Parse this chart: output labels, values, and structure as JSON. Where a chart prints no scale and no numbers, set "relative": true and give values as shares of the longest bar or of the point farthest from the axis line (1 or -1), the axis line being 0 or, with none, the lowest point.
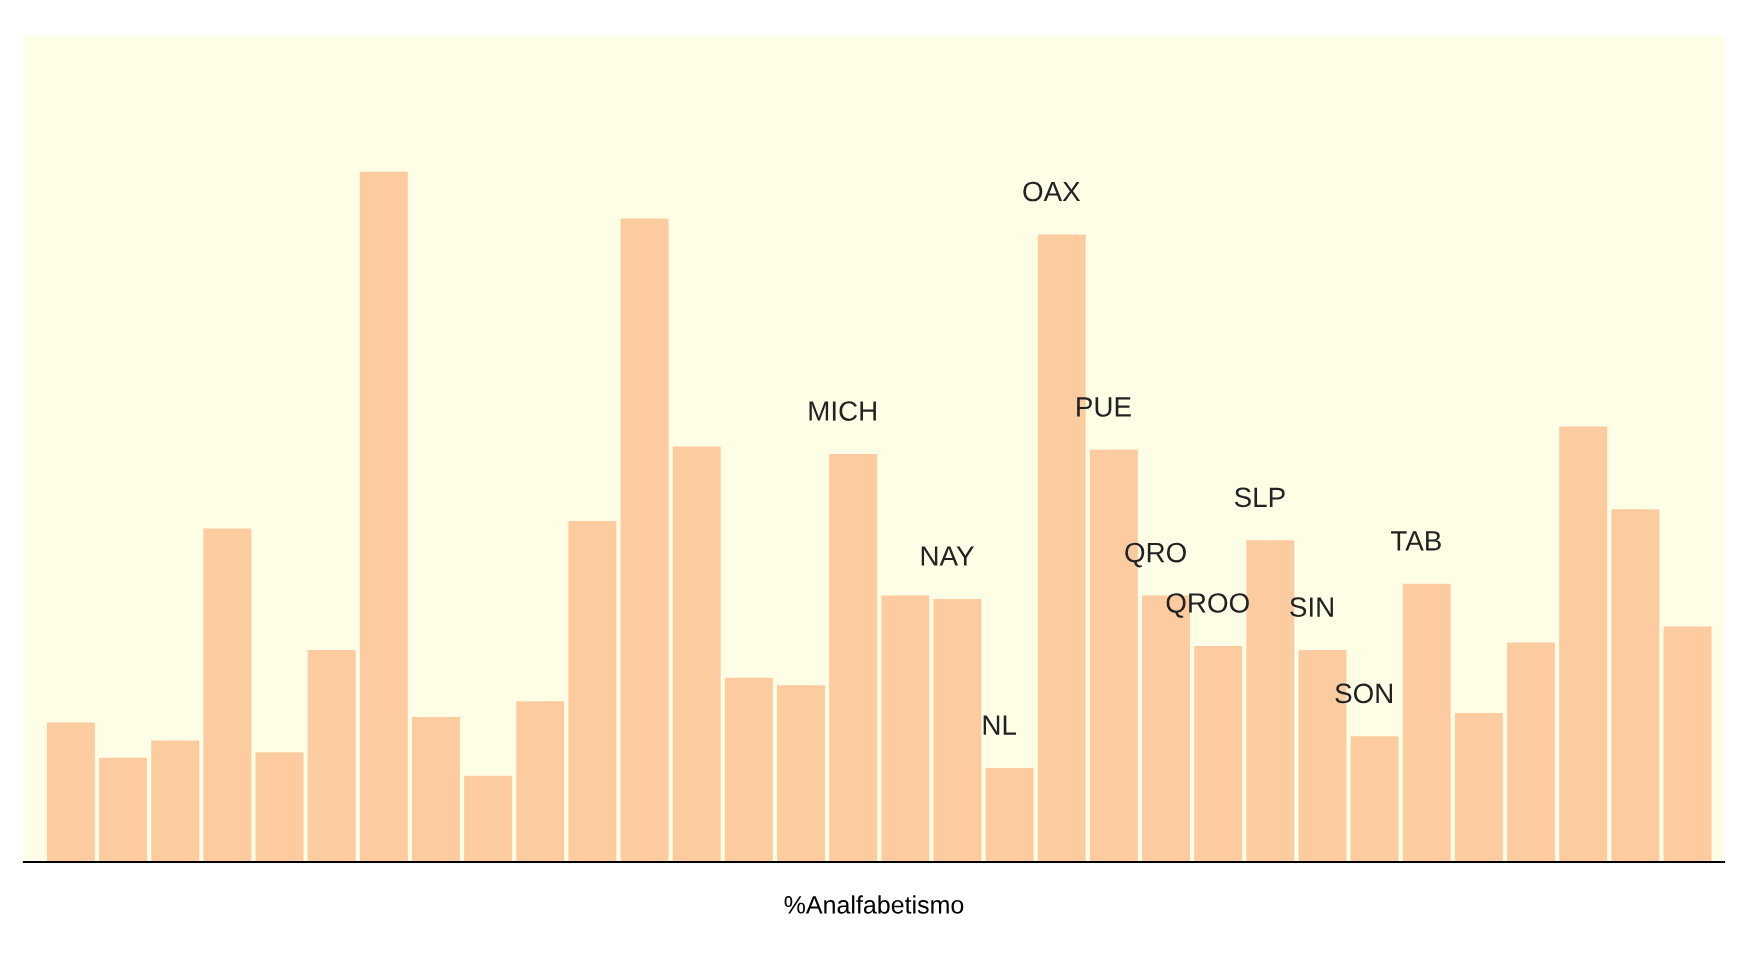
{
  "chart_data": {
    "type": "bar",
    "relative": true,
    "xlabel": "%Analfabetismo",
    "categories": [
      null,
      null,
      null,
      null,
      null,
      null,
      null,
      null,
      null,
      null,
      null,
      null,
      null,
      null,
      null,
      "MICH",
      null,
      "NAY",
      "NL",
      "OAX",
      "PUE",
      "QRO",
      "QROO",
      "SLP",
      "SIN",
      "SON",
      "TAB",
      null,
      null,
      null,
      null,
      null
    ],
    "values": [
      0.202,
      0.151,
      0.176,
      0.483,
      0.159,
      0.307,
      1,
      0.21,
      0.125,
      0.233,
      0.494,
      0.932,
      0.602,
      0.267,
      0.256,
      0.591,
      0.386,
      0.381,
      0.136,
      0.909,
      0.597,
      0.386,
      0.313,
      0.466,
      0.307,
      0.182,
      0.403,
      0.216,
      0.318,
      0.631,
      0.511,
      0.341
    ],
    "color": "#fccca0"
  }
}
